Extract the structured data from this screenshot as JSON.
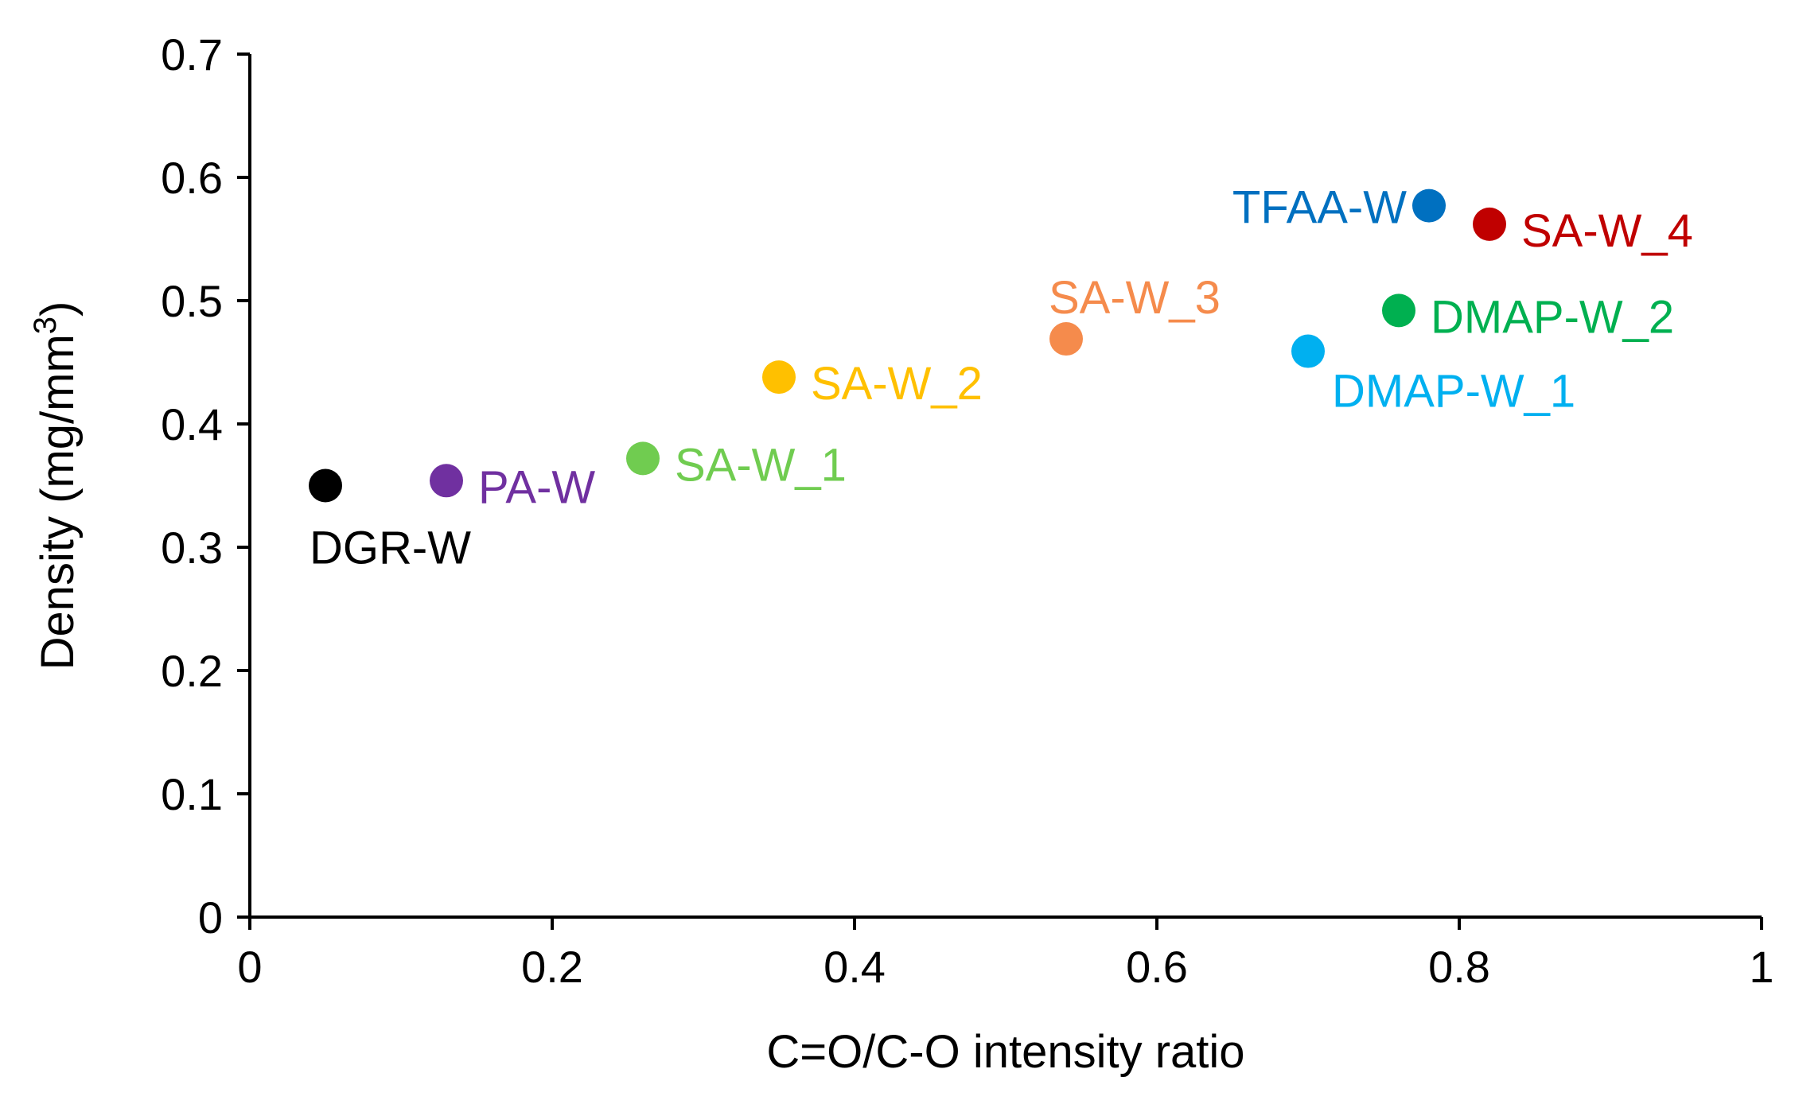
{
  "chart_data": {
    "type": "scatter",
    "title": "",
    "xlabel": "C=O/C-O intensity ratio",
    "ylabel": {
      "prefix": "Density (mg/mm",
      "superscript": "3",
      "suffix": ")"
    },
    "xlim": [
      0,
      1
    ],
    "ylim": [
      0,
      0.7
    ],
    "x_ticks": [
      {
        "value": 0,
        "label": "0"
      },
      {
        "value": 0.2,
        "label": "0.2"
      },
      {
        "value": 0.4,
        "label": "0.4"
      },
      {
        "value": 0.6,
        "label": "0.6"
      },
      {
        "value": 0.8,
        "label": "0.8"
      },
      {
        "value": 1,
        "label": "1"
      }
    ],
    "y_ticks": [
      {
        "value": 0,
        "label": "0"
      },
      {
        "value": 0.1,
        "label": "0.1"
      },
      {
        "value": 0.2,
        "label": "0.2"
      },
      {
        "value": 0.3,
        "label": "0.3"
      },
      {
        "value": 0.4,
        "label": "0.4"
      },
      {
        "value": 0.5,
        "label": "0.5"
      },
      {
        "value": 0.6,
        "label": "0.6"
      },
      {
        "value": 0.7,
        "label": "0.7"
      }
    ],
    "grid": false,
    "legend": "none",
    "points": [
      {
        "name": "DGR-W",
        "x": 0.05,
        "y": 0.35,
        "color": "#000000",
        "label_side": "below"
      },
      {
        "name": "PA-W",
        "x": 0.13,
        "y": 0.354,
        "color": "#7030a0",
        "label_side": "right"
      },
      {
        "name": "SA-W_1",
        "x": 0.26,
        "y": 0.372,
        "color": "#70cc50",
        "label_side": "right"
      },
      {
        "name": "SA-W_2",
        "x": 0.35,
        "y": 0.438,
        "color": "#ffc000",
        "label_side": "right"
      },
      {
        "name": "SA-W_3",
        "x": 0.54,
        "y": 0.469,
        "color": "#f58b4c",
        "label_side": "above-right"
      },
      {
        "name": "DMAP-W_1",
        "x": 0.7,
        "y": 0.459,
        "color": "#00b0f0",
        "label_side": "below-right"
      },
      {
        "name": "DMAP-W_2",
        "x": 0.76,
        "y": 0.492,
        "color": "#00b050",
        "label_side": "right"
      },
      {
        "name": "TFAA-W",
        "x": 0.78,
        "y": 0.577,
        "color": "#0070c0",
        "label_side": "left"
      },
      {
        "name": "SA-W_4",
        "x": 0.82,
        "y": 0.562,
        "color": "#c00000",
        "label_side": "right"
      }
    ]
  }
}
